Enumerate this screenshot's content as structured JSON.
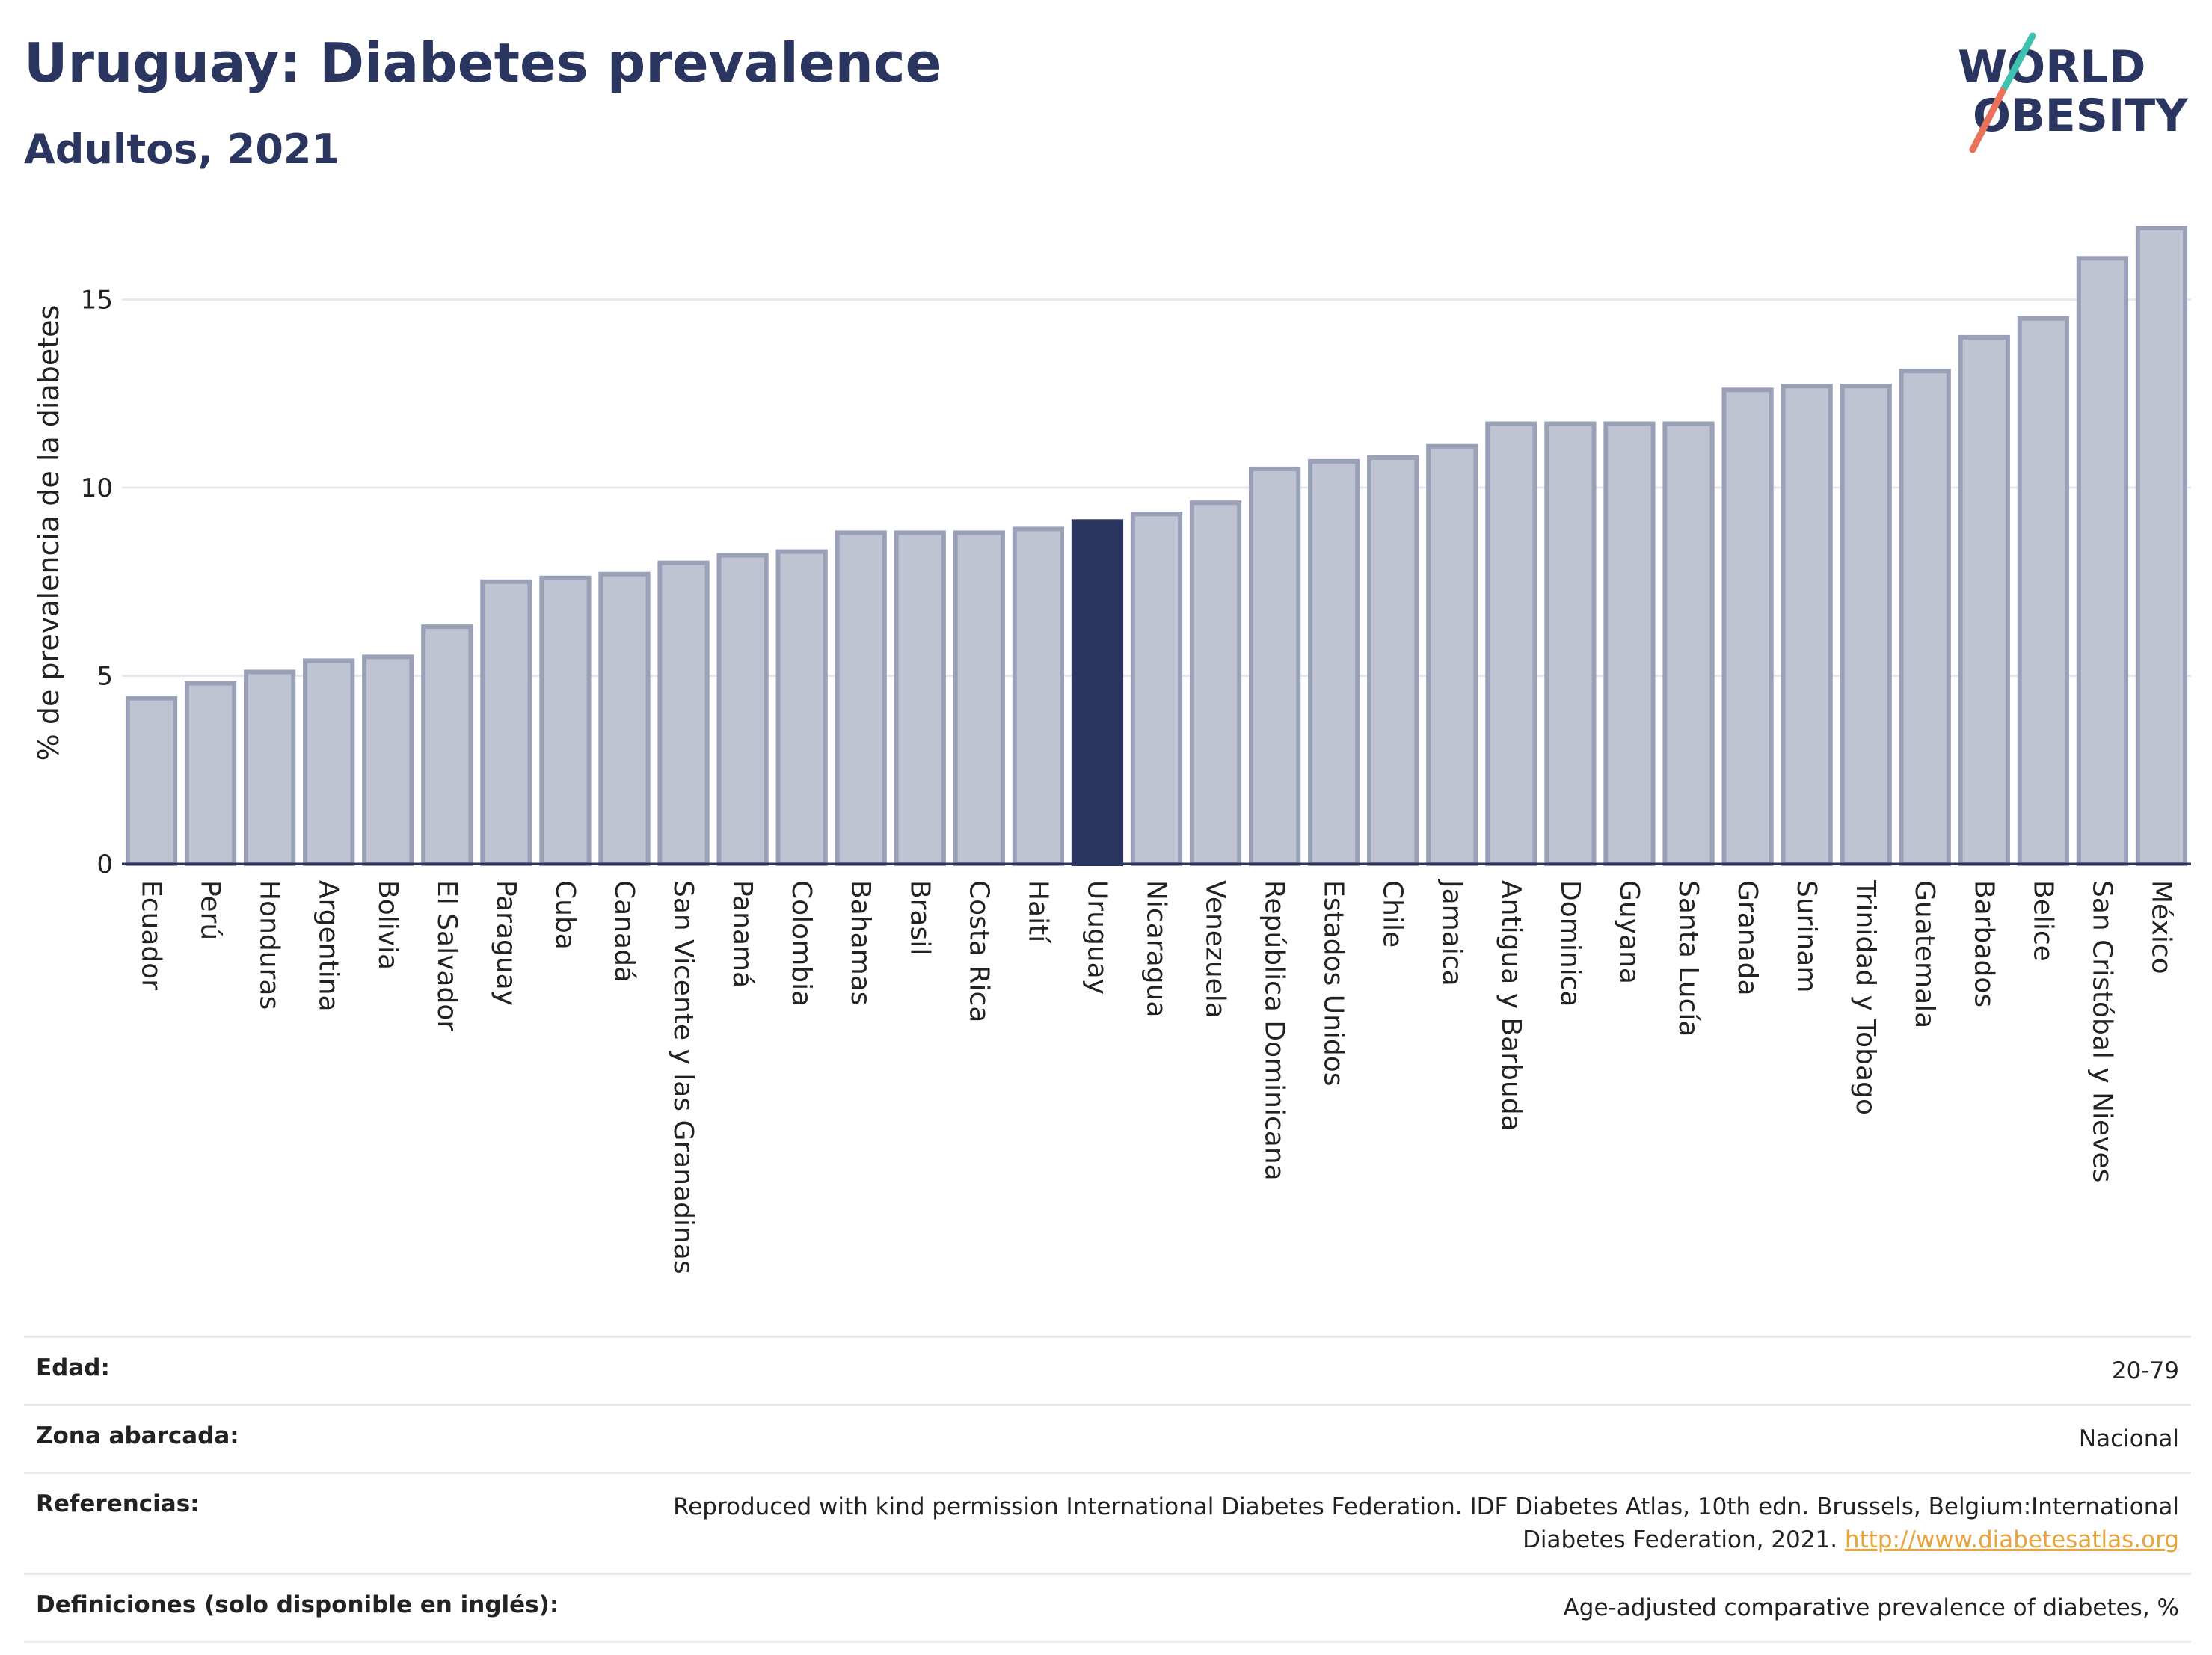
{
  "header": {
    "title": "Uruguay: Diabetes prevalence",
    "subtitle": "Adultos, 2021"
  },
  "logo": {
    "line1": "WORLD",
    "line2": "OBESITY",
    "accent_colors": [
      "#3fc1b0",
      "#e8735a"
    ]
  },
  "colors": {
    "bar": "#c0c4d2",
    "bar_stroke": "#9aa0b8",
    "highlight": "#2a3560",
    "grid": "#e6e8ef",
    "axis": "#2a3560"
  },
  "chart_data": {
    "type": "bar",
    "ylabel": "% de prevalencia de la diabetes",
    "ylim": [
      0,
      17
    ],
    "yticks": [
      0,
      5,
      10,
      15
    ],
    "highlight": "Uruguay",
    "categories": [
      "Ecuador",
      "Perú",
      "Honduras",
      "Argentina",
      "Bolivia",
      "El Salvador",
      "Paraguay",
      "Cuba",
      "Canadá",
      "San Vicente y las Granadinas",
      "Panamá",
      "Colombia",
      "Bahamas",
      "Brasil",
      "Costa Rica",
      "Haití",
      "Uruguay",
      "Nicaragua",
      "Venezuela",
      "República Dominicana",
      "Estados Unidos",
      "Chile",
      "Jamaica",
      "Antigua y Barbuda",
      "Dominica",
      "Guyana",
      "Santa Lucía",
      "Granada",
      "Surinam",
      "Trinidad y Tobago",
      "Guatemala",
      "Barbados",
      "Belice",
      "San Cristóbal y Nieves",
      "México"
    ],
    "values": [
      4.4,
      4.8,
      5.1,
      5.4,
      5.5,
      6.3,
      7.5,
      7.6,
      7.7,
      8.0,
      8.2,
      8.3,
      8.8,
      8.8,
      8.8,
      8.9,
      9.1,
      9.3,
      9.6,
      10.5,
      10.7,
      10.8,
      11.1,
      11.7,
      11.7,
      11.7,
      11.7,
      12.6,
      12.7,
      12.7,
      13.1,
      14.0,
      14.5,
      16.1,
      16.9
    ]
  },
  "meta": {
    "rows": [
      {
        "label": "Edad:",
        "value": "20-79"
      },
      {
        "label": "Zona abarcada:",
        "value": "Nacional"
      },
      {
        "label": "Referencias:",
        "value": "Reproduced with kind permission International Diabetes Federation.  IDF Diabetes Atlas, 10th edn. Brussels, Belgium:International Diabetes Federation, 2021. ",
        "link": "http://www.diabetesatlas.org"
      },
      {
        "label": "Definiciones (solo disponible en inglés):",
        "value": "Age-adjusted comparative prevalence of diabetes, %"
      }
    ]
  }
}
